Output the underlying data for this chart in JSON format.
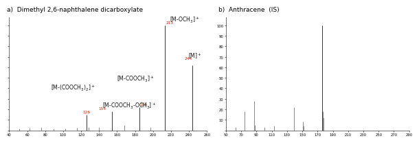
{
  "title_a": "a)  Dimethyl 2,6-naphthalene dicarboxylate",
  "title_b": "b)  Anthracene  (IS)",
  "panel_a": {
    "peaks": [
      {
        "mz": 51,
        "intensity": 1.5
      },
      {
        "mz": 63,
        "intensity": 2
      },
      {
        "mz": 76,
        "intensity": 3
      },
      {
        "mz": 89,
        "intensity": 1.5
      },
      {
        "mz": 102,
        "intensity": 1.5
      },
      {
        "mz": 115,
        "intensity": 2
      },
      {
        "mz": 126,
        "intensity": 15
      },
      {
        "mz": 128,
        "intensity": 3
      },
      {
        "mz": 140,
        "intensity": 3
      },
      {
        "mz": 154,
        "intensity": 18
      },
      {
        "mz": 168,
        "intensity": 5
      },
      {
        "mz": 185,
        "intensity": 22
      },
      {
        "mz": 197,
        "intensity": 3
      },
      {
        "mz": 213,
        "intensity": 100
      },
      {
        "mz": 244,
        "intensity": 62
      }
    ],
    "xlim": [
      40,
      260
    ],
    "ylim": [
      0,
      108
    ],
    "ytick_vals": [
      0,
      10,
      20,
      30,
      40,
      50,
      60,
      70,
      80,
      90,
      100
    ],
    "ytick_labels": [
      "",
      "",
      "",
      "",
      "",
      "",
      "",
      "",
      "",
      "",
      ""
    ],
    "xtick_vals": [
      40,
      60,
      80,
      100,
      120,
      140,
      160,
      180,
      200,
      220,
      240,
      260
    ],
    "xtick_labels": [
      "40",
      "60",
      "80",
      "100",
      "120",
      "140",
      "160",
      "180",
      "200",
      "220",
      "240",
      "260"
    ]
  },
  "panel_b": {
    "peaks": [
      {
        "mz": 63,
        "intensity": 3
      },
      {
        "mz": 74,
        "intensity": 18
      },
      {
        "mz": 87,
        "intensity": 28
      },
      {
        "mz": 88,
        "intensity": 5
      },
      {
        "mz": 100,
        "intensity": 3
      },
      {
        "mz": 113,
        "intensity": 4
      },
      {
        "mz": 139,
        "intensity": 22
      },
      {
        "mz": 151,
        "intensity": 8
      },
      {
        "mz": 152,
        "intensity": 4
      },
      {
        "mz": 176,
        "intensity": 100
      },
      {
        "mz": 177,
        "intensity": 18
      },
      {
        "mz": 178,
        "intensity": 12
      }
    ],
    "xlim": [
      50,
      290
    ],
    "ylim": [
      0,
      108
    ],
    "ytick_vals": [
      0,
      10,
      20,
      30,
      40,
      50,
      60,
      70,
      80,
      90,
      100
    ],
    "ytick_labels": [
      "",
      "10",
      "20",
      "30",
      "40",
      "50",
      "60",
      "70",
      "80",
      "90",
      "100"
    ],
    "xtick_vals": [
      50,
      70,
      90,
      110,
      130,
      150,
      170,
      190,
      210,
      230,
      250,
      270,
      290
    ],
    "xtick_labels": [
      "50",
      "70",
      "90",
      "110",
      "130",
      "150",
      "170",
      "190",
      "210",
      "230",
      "250",
      "270",
      "290"
    ]
  },
  "bar_color": "#888888",
  "bar_color_dark": "#333333",
  "label_color_red": "#cc2200",
  "label_color_black": "#111111",
  "tick_fontsize": 3.8,
  "ann_num_fontsize": 4.2,
  "ann_text_fontsize": 5.5,
  "title_fontsize": 6.5
}
